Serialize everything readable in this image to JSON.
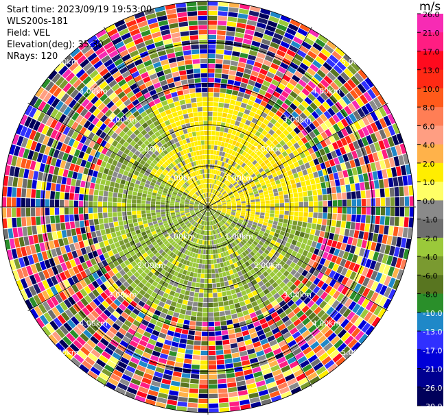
{
  "header": {
    "start_time": "Start time: 2023/09/19 19:53:00",
    "instrument": "WLS200s-181",
    "field": "Field: VEL",
    "elevation": "Elevation(deg): 35.30",
    "nrays": "NRays: 120"
  },
  "colorbar": {
    "unit": "m/s",
    "ticks": [
      "26.0",
      "21.0",
      "17.0",
      "13.0",
      "10.0",
      "8.0",
      "6.0",
      "4.0",
      "2.0",
      "1.0",
      "0.0",
      "-1.0",
      "-2.0",
      "-4.0",
      "-6.0",
      "-8.0",
      "-10.0",
      "-13.0",
      "-17.0",
      "-21.0",
      "-26.0",
      "-30.0"
    ],
    "colors": [
      "#f72bb4",
      "#ff1d82",
      "#ff0a1e",
      "#ff2a14",
      "#ff5a1a",
      "#ff7e55",
      "#ff9e82",
      "#ffb24a",
      "#ffee00",
      "#ffff66",
      "#8a8a8a",
      "#6e6e6e",
      "#9bc93a",
      "#7a9a30",
      "#587520",
      "#2a8f2a",
      "#1f88c8",
      "#3030ff",
      "#0000d8",
      "#000090",
      "#00005a",
      "#1a1a6a"
    ]
  },
  "range_labels": {
    "r1": "1.00km",
    "r2": "2.00km",
    "r3": "3.00km",
    "r4": "4.00km",
    "r5": "5.00km"
  }
}
